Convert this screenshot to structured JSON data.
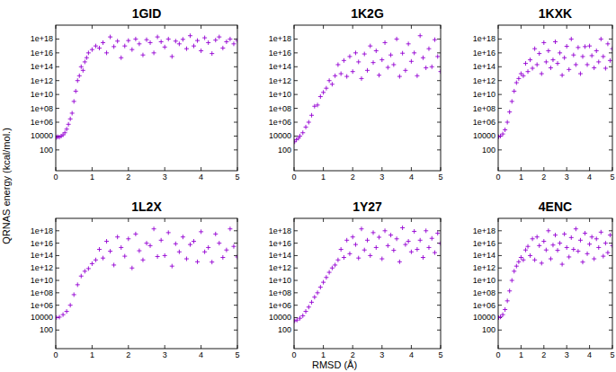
{
  "ylabel": "QRNAS energy (kcal/mol.)",
  "xlabel": "RMSD (Å)",
  "chart_data": [
    {
      "type": "scatter",
      "title": "1GID",
      "color": "#9400d3",
      "marker": "plus",
      "log": "y",
      "xlim": [
        0,
        5
      ],
      "ylim": [
        0.1,
        1e+20
      ],
      "xticks": [
        0,
        1,
        2,
        3,
        4,
        5
      ],
      "yticks": [
        100,
        10000,
        {
          "value": 1000000.0,
          "label": "1e+06"
        },
        {
          "value": 100000000.0,
          "label": "1e+08"
        },
        {
          "value": 10000000000.0,
          "label": "1e+10"
        },
        {
          "value": 1000000000000.0,
          "label": "1e+12"
        },
        {
          "value": 100000000000000.0,
          "label": "1e+14"
        },
        {
          "value": 1e+16,
          "label": "1e+16"
        },
        {
          "value": 1e+18,
          "label": "1e+18"
        }
      ],
      "x": [
        0.02,
        0.05,
        0.1,
        0.15,
        0.2,
        0.25,
        0.3,
        0.35,
        0.4,
        0.45,
        0.5,
        0.55,
        0.6,
        0.65,
        0.7,
        0.75,
        0.8,
        0.85,
        0.9,
        1.0,
        1.1,
        1.2,
        1.3,
        1.4,
        1.5,
        1.6,
        1.7,
        1.8,
        1.9,
        2.0,
        2.1,
        2.2,
        2.3,
        2.4,
        2.5,
        2.6,
        2.7,
        2.8,
        2.9,
        3.0,
        3.1,
        3.2,
        3.3,
        3.4,
        3.5,
        3.6,
        3.7,
        3.8,
        3.9,
        4.0,
        4.1,
        4.2,
        4.3,
        4.4,
        4.5,
        4.6,
        4.7,
        4.8,
        4.9,
        5.0
      ],
      "values": [
        6000.0,
        8000.0,
        7000.0,
        10000.0,
        15000.0,
        30000.0,
        100000.0,
        500000.0,
        3000000.0,
        20000000.0,
        1000000000.0,
        30000000000.0,
        1000000000000.0,
        5000000000000.0,
        100000000000000.0,
        30000000000000.0,
        500000000000000.0,
        2000000000000000.0,
        1e+16,
        3e+16,
        1e+17,
        5e+16,
        3e+17,
        1e+16,
        2e+18,
        8e+16,
        5e+17,
        2000000000000000.0,
        1e+17,
        6e+17,
        3e+16,
        1e+18,
        2e+17,
        5000000000000000.0,
        8e+17,
        3e+17,
        1e+16,
        2e+18,
        4e+17,
        7e+16,
        1e+18,
        3000000000000000.0,
        5e+17,
        2e+17,
        9e+17,
        4e+16,
        3e+18,
        1e+17,
        6e+17,
        2e+16,
        1.5e+18,
        3e+17,
        8000000000000000.0,
        7e+17,
        2e+18,
        5e+16,
        4e+17,
        1e+18,
        2e+17,
        6e+17
      ]
    },
    {
      "type": "scatter",
      "title": "1K2G",
      "color": "#9400d3",
      "marker": "plus",
      "log": "y",
      "xlim": [
        0,
        5
      ],
      "ylim": [
        0.1,
        1e+20
      ],
      "xticks": [
        0,
        1,
        2,
        3,
        4,
        5
      ],
      "yticks": [
        100,
        10000,
        {
          "value": 1000000.0,
          "label": "1e+06"
        },
        {
          "value": 100000000.0,
          "label": "1e+08"
        },
        {
          "value": 10000000000.0,
          "label": "1e+10"
        },
        {
          "value": 1000000000000.0,
          "label": "1e+12"
        },
        {
          "value": 100000000000000.0,
          "label": "1e+14"
        },
        {
          "value": 1e+16,
          "label": "1e+16"
        },
        {
          "value": 1e+18,
          "label": "1e+18"
        }
      ],
      "x": [
        0.02,
        0.08,
        0.15,
        0.2,
        0.3,
        0.4,
        0.5,
        0.6,
        0.7,
        0.8,
        0.9,
        1.0,
        1.1,
        1.2,
        1.3,
        1.4,
        1.5,
        1.6,
        1.7,
        1.8,
        1.9,
        2.0,
        2.1,
        2.2,
        2.3,
        2.4,
        2.5,
        2.6,
        2.7,
        2.8,
        2.9,
        3.0,
        3.1,
        3.2,
        3.3,
        3.4,
        3.5,
        3.6,
        3.7,
        3.8,
        3.9,
        4.0,
        4.1,
        4.2,
        4.3,
        4.4,
        4.5,
        4.6,
        4.7,
        4.8,
        4.9,
        5.0
      ],
      "values": [
        1500.0,
        3000.0,
        5000.0,
        10000.0,
        30000.0,
        200000.0,
        1000000.0,
        10000000.0,
        200000000.0,
        300000000.0,
        5000000000.0,
        20000000000.0,
        80000000000.0,
        1000000000000.0,
        300000000000.0,
        5000000000000.0,
        200000000000000.0,
        10000000000000.0,
        800000000000000.0,
        4000000000000.0,
        3000000000000000.0,
        20000000000000.0,
        1e+16,
        500000000000000.0,
        2000000000000.0,
        7000000000000000.0,
        30000000000000.0,
        1e+17,
        400000000000000.0,
        2e+16,
        6000000000000.0,
        1000000000000000.0,
        3e+17,
        80000000000000.0,
        5000000000000000.0,
        200000000000000.0,
        1e+18,
        4000000000000.0,
        9000000000000000.0,
        30000000000000.0,
        2e+17,
        600000000000000.0,
        1e+16,
        5000000000000.0,
        3e+18,
        2000000000000000.0,
        70000000000000.0,
        4e+16,
        100000000000000.0,
        8e+17,
        3000000000000000.0,
        20000000000000.0
      ]
    },
    {
      "type": "scatter",
      "title": "1KXK",
      "color": "#9400d3",
      "marker": "plus",
      "log": "y",
      "xlim": [
        0,
        5
      ],
      "ylim": [
        0.1,
        1e+20
      ],
      "xticks": [
        0,
        1,
        2,
        3,
        4,
        5
      ],
      "yticks": [
        100,
        10000,
        {
          "value": 1000000.0,
          "label": "1e+06"
        },
        {
          "value": 100000000.0,
          "label": "1e+08"
        },
        {
          "value": 10000000000.0,
          "label": "1e+10"
        },
        {
          "value": 1000000000000.0,
          "label": "1e+12"
        },
        {
          "value": 100000000000000.0,
          "label": "1e+14"
        },
        {
          "value": 1e+16,
          "label": "1e+16"
        },
        {
          "value": 1e+18,
          "label": "1e+18"
        }
      ],
      "x": [
        0.02,
        0.1,
        0.2,
        0.3,
        0.4,
        0.5,
        0.6,
        0.7,
        0.8,
        0.9,
        1.0,
        1.1,
        1.2,
        1.3,
        1.4,
        1.5,
        1.6,
        1.7,
        1.8,
        1.9,
        2.0,
        2.1,
        2.2,
        2.3,
        2.4,
        2.5,
        2.6,
        2.7,
        2.8,
        2.9,
        3.0,
        3.1,
        3.2,
        3.3,
        3.4,
        3.5,
        3.6,
        3.7,
        3.8,
        3.9,
        4.0,
        4.1,
        4.2,
        4.3,
        4.4,
        4.5,
        4.6,
        4.7,
        4.8,
        4.9,
        5.0
      ],
      "values": [
        8000.0,
        10000.0,
        20000.0,
        80000.0,
        1000000.0,
        30000000.0,
        1000000000.0,
        30000000000.0,
        500000000000.0,
        2000000000000.0,
        10000000000000.0,
        5000000000000.0,
        300000000000000.0,
        20000000000000.0,
        1000000000000000.0,
        60000000000000.0,
        4e+16,
        200000000000000.0,
        8000000000000000.0,
        10000000000000.0,
        3e+17,
        500000000000000.0,
        2e+16,
        70000000000000.0,
        1000000000000000.0,
        4e+17,
        300000000000000.0,
        1e+16,
        6000000000000.0,
        2000000000000000.0,
        9e+16,
        40000000000000.0,
        1e+18,
        5000000000000000.0,
        200000000000000.0,
        6e+16,
        10000000000000.0,
        3000000000000000.0,
        8e+16,
        200000000000000.0,
        1e+17,
        4000000000000000.0,
        70000000000000.0,
        2e+16,
        500000000000000.0,
        1e+18,
        3000000000000000.0,
        60000000000000.0,
        2e+17,
        800000000000000.0,
        4e+16
      ]
    },
    {
      "type": "scatter",
      "title": "1L2X",
      "color": "#9400d3",
      "marker": "plus",
      "log": "y",
      "xlim": [
        0,
        5
      ],
      "ylim": [
        0.1,
        1e+20
      ],
      "xticks": [
        0,
        1,
        2,
        3,
        4,
        5
      ],
      "yticks": [
        100,
        10000,
        {
          "value": 1000000.0,
          "label": "1e+06"
        },
        {
          "value": 100000000.0,
          "label": "1e+08"
        },
        {
          "value": 10000000000.0,
          "label": "1e+10"
        },
        {
          "value": 1000000000000.0,
          "label": "1e+12"
        },
        {
          "value": 100000000000000.0,
          "label": "1e+14"
        },
        {
          "value": 1e+16,
          "label": "1e+16"
        },
        {
          "value": 1e+18,
          "label": "1e+18"
        }
      ],
      "x": [
        0.02,
        0.1,
        0.2,
        0.3,
        0.4,
        0.5,
        0.6,
        0.7,
        0.8,
        0.9,
        1.0,
        1.1,
        1.2,
        1.3,
        1.4,
        1.5,
        1.6,
        1.7,
        1.8,
        1.9,
        2.0,
        2.1,
        2.2,
        2.3,
        2.4,
        2.5,
        2.6,
        2.7,
        2.8,
        2.9,
        3.0,
        3.1,
        3.2,
        3.3,
        3.4,
        3.5,
        3.6,
        3.7,
        3.8,
        3.9,
        4.0,
        4.1,
        4.2,
        4.3,
        4.4,
        4.5,
        4.6,
        4.7,
        4.8,
        4.9,
        5.0
      ],
      "values": [
        10000.0,
        12000.0,
        30000.0,
        100000.0,
        1000000.0,
        50000000.0,
        2000000000.0,
        50000000000.0,
        300000000000.0,
        800000000000.0,
        5000000000000.0,
        20000000000000.0,
        1000000000000000.0,
        40000000000000.0,
        2e+16,
        500000000000000.0,
        3000000000000.0,
        1e+17,
        2000000000000000.0,
        80000000000000.0,
        5e+16,
        1000000000000.0,
        3e+17,
        600000000000000.0,
        20000000000000.0,
        1e+16,
        4000000000000000.0,
        2e+18,
        70000000000000.0,
        3e+16,
        100000000000000.0,
        5e+17,
        2000000000000.0,
        8000000000000000.0,
        400000000000000.0,
        1e+17,
        30000000000000.0,
        6000000000000000.0,
        2e+16,
        10000000000000.0,
        7e+17,
        400000000000000.0,
        2000000000000000.0,
        9000000000000.0,
        3e+17,
        1e+16,
        50000000000000.0,
        800000000000000.0,
        2e+18,
        3000000000000000.0,
        60000000000000.0
      ]
    },
    {
      "type": "scatter",
      "title": "1Y27",
      "color": "#9400d3",
      "marker": "plus",
      "log": "y",
      "xlim": [
        0,
        5
      ],
      "ylim": [
        0.1,
        1e+20
      ],
      "xticks": [
        0,
        1,
        2,
        3,
        4,
        5
      ],
      "yticks": [
        100,
        10000,
        {
          "value": 1000000.0,
          "label": "1e+06"
        },
        {
          "value": 100000000.0,
          "label": "1e+08"
        },
        {
          "value": 10000000000.0,
          "label": "1e+10"
        },
        {
          "value": 1000000000000.0,
          "label": "1e+12"
        },
        {
          "value": 100000000000000.0,
          "label": "1e+14"
        },
        {
          "value": 1e+16,
          "label": "1e+16"
        },
        {
          "value": 1e+18,
          "label": "1e+18"
        }
      ],
      "x": [
        0.02,
        0.1,
        0.2,
        0.3,
        0.4,
        0.5,
        0.6,
        0.7,
        0.8,
        0.9,
        1.0,
        1.1,
        1.2,
        1.3,
        1.4,
        1.5,
        1.6,
        1.7,
        1.8,
        1.9,
        2.0,
        2.1,
        2.2,
        2.3,
        2.4,
        2.5,
        2.6,
        2.7,
        2.8,
        2.9,
        3.0,
        3.1,
        3.2,
        3.3,
        3.4,
        3.5,
        3.6,
        3.7,
        3.8,
        3.9,
        4.0,
        4.1,
        4.2,
        4.3,
        4.4,
        4.5,
        4.6,
        4.7,
        4.8,
        4.9,
        5.0
      ],
      "values": [
        3000.0,
        4000.0,
        8000.0,
        20000.0,
        100000.0,
        500000.0,
        3000000.0,
        20000000.0,
        100000000.0,
        800000000.0,
        5000000000.0,
        30000000000.0,
        200000000000.0,
        1000000000000.0,
        3000000000000.0,
        20000000000000.0,
        1000000000000000.0,
        50000000000000.0,
        3e+16,
        200000000000000.0,
        1e+17,
        6000000000000000.0,
        40000000000000.0,
        2e+18,
        800000000000000.0,
        3e+16,
        100000000000000.0,
        5e+17,
        2000000000000000.0,
        9e+16,
        30000000000000.0,
        1e+18,
        4000000000000000.0,
        2e+17,
        700000000000000.0,
        5e+16,
        10000000000000.0,
        3e+18,
        6000000000000000.0,
        2e+16,
        400000000000000.0,
        8e+17,
        1000000000000000.0,
        3e+16,
        50000000000000.0,
        1e+18,
        2000000000000000.0,
        6e+16,
        300000000000000.0,
        4e+17,
        9000000000000000.0
      ]
    },
    {
      "type": "scatter",
      "title": "4ENC",
      "color": "#9400d3",
      "marker": "plus",
      "log": "y",
      "xlim": [
        0,
        5
      ],
      "ylim": [
        0.1,
        1e+20
      ],
      "xticks": [
        0,
        1,
        2,
        3,
        4,
        5
      ],
      "yticks": [
        100,
        10000,
        {
          "value": 1000000.0,
          "label": "1e+06"
        },
        {
          "value": 100000000.0,
          "label": "1e+08"
        },
        {
          "value": 10000000000.0,
          "label": "1e+10"
        },
        {
          "value": 1000000000000.0,
          "label": "1e+12"
        },
        {
          "value": 100000000000000.0,
          "label": "1e+14"
        },
        {
          "value": 1e+16,
          "label": "1e+16"
        },
        {
          "value": 1e+18,
          "label": "1e+18"
        }
      ],
      "x": [
        0.02,
        0.1,
        0.2,
        0.3,
        0.4,
        0.5,
        0.6,
        0.7,
        0.8,
        0.9,
        1.0,
        1.1,
        1.2,
        1.3,
        1.4,
        1.5,
        1.6,
        1.7,
        1.8,
        1.9,
        2.0,
        2.1,
        2.2,
        2.3,
        2.4,
        2.5,
        2.6,
        2.7,
        2.8,
        2.9,
        3.0,
        3.1,
        3.2,
        3.3,
        3.4,
        3.5,
        3.6,
        3.7,
        3.8,
        3.9,
        4.0,
        4.1,
        4.2,
        4.3,
        4.4,
        4.5,
        4.6,
        4.7,
        4.8,
        4.9,
        5.0
      ],
      "values": [
        10000.0,
        13000.0,
        30000.0,
        200000.0,
        5000000.0,
        200000000.0,
        10000000000.0,
        300000000000.0,
        2000000000000.0,
        10000000000000.0,
        50000000000000.0,
        20000000000000.0,
        800000000000000.0,
        3000000000000000.0,
        100000000000000.0,
        5e+16,
        20000000000000.0,
        1e+17,
        4000000000000000.0,
        6000000000000.0,
        2e+16,
        800000000000000.0,
        1e+18,
        30000000000000.0,
        5000000000000000.0,
        2e+17,
        700000000000000.0,
        1e+16,
        4000000000000.0,
        3e+17,
        2000000000000000.0,
        60000000000000.0,
        8e+16,
        1000000000000000.0,
        2e+18,
        500000000000000.0,
        3e+16,
        9000000000000.0,
        4e+17,
        200000000000000.0,
        7000000000000000.0,
        1e+17,
        30000000000000.0,
        5e+16,
        2000000000000000.0,
        6e+17,
        80000000000000.0,
        1e+16,
        300000000000000.0,
        2e+17,
        4000000000000000.0
      ]
    }
  ]
}
